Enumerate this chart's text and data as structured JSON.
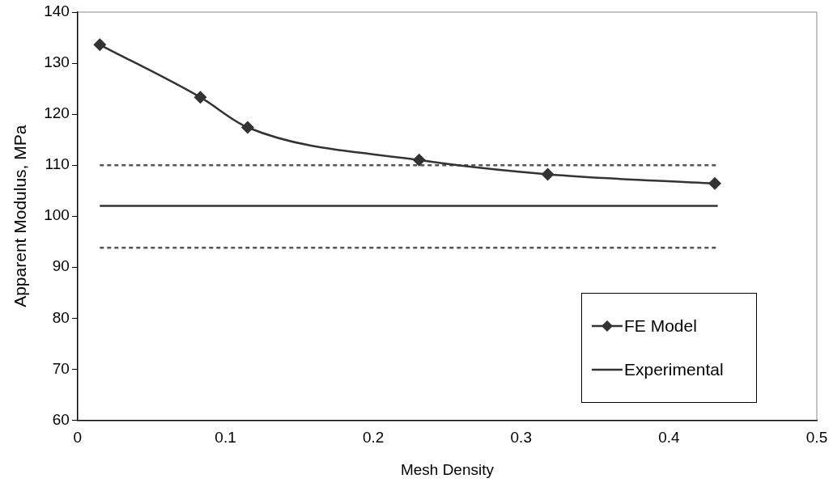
{
  "chart_data": {
    "type": "line",
    "xlabel": "Mesh Density",
    "ylabel": "Apparent Modulus, MPa",
    "xlim": [
      0,
      0.5
    ],
    "xticks": [
      0,
      0.1,
      0.2,
      0.3,
      0.4,
      0.5
    ],
    "ylim": [
      60,
      140
    ],
    "yticks": [
      60,
      70,
      80,
      90,
      100,
      110,
      120,
      130,
      140
    ],
    "grid": false,
    "legend": "bottom right",
    "series": [
      {
        "name": "FE Model",
        "color": "#333333",
        "marker": "diamond",
        "line_style": "solid",
        "x": [
          0.015,
          0.083,
          0.115,
          0.231,
          0.318,
          0.431
        ],
        "values": [
          133.6,
          123.3,
          117.4,
          111.0,
          108.2,
          106.4
        ]
      },
      {
        "name": "Experimental",
        "color": "#333333",
        "marker": "none",
        "line_style": "solid",
        "x": [
          0.015,
          0.433
        ],
        "values": [
          102,
          102
        ]
      },
      {
        "color": "#555555",
        "marker": "none",
        "line_style": "dashed",
        "x": [
          0.015,
          0.433
        ],
        "values": [
          110,
          110
        ]
      },
      {
        "color": "#555555",
        "marker": "none",
        "line_style": "dashed",
        "x": [
          0.015,
          0.433
        ],
        "values": [
          93.8,
          93.8
        ]
      }
    ]
  }
}
